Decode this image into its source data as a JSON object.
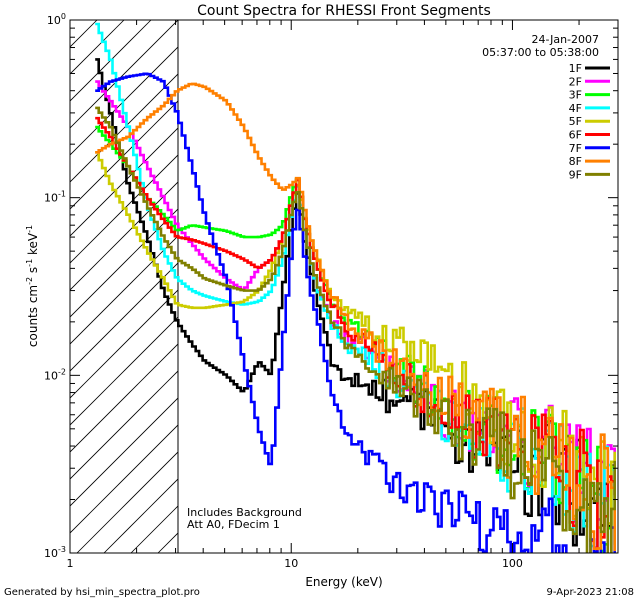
{
  "chart_data": {
    "type": "line",
    "title": "Count Spectra for RHESSI Front Segments",
    "xlabel": "Energy (keV)",
    "ylabel_parts": {
      "base": "counts cm",
      "exp1": "-2",
      "mid": " s",
      "exp2": "-1",
      "end": " keV",
      "exp3": "-1"
    },
    "xscale": "log",
    "yscale": "log",
    "xlim": [
      1.0,
      300
    ],
    "ylim": [
      0.001,
      1.0
    ],
    "x_ticks": [
      {
        "value": 1,
        "label": "1"
      },
      {
        "value": 10,
        "label": "10"
      },
      {
        "value": 100,
        "label": "100"
      }
    ],
    "y_ticks": [
      {
        "value": 1.0,
        "base": "10",
        "exp": "0"
      },
      {
        "value": 0.1,
        "base": "10",
        "exp": "-1"
      },
      {
        "value": 0.01,
        "base": "10",
        "exp": "-2"
      },
      {
        "value": 0.001,
        "base": "10",
        "exp": "-3"
      }
    ],
    "legend": {
      "position": "top-right",
      "date": "24-Jan-2007",
      "time_range": "05:37:00 to 05:38:00"
    },
    "hatched_region": {
      "from_keV": 1.0,
      "to_keV": 3.0
    },
    "annotations": [
      "Includes Background",
      "Att A0, FDecim 1"
    ],
    "series": [
      {
        "name": "1F",
        "color": "#000000",
        "x": [
          1.3,
          1.5,
          1.8,
          2.2,
          2.6,
          3.0,
          3.5,
          4.0,
          5.0,
          6.0,
          7.0,
          8.0,
          9.0,
          10.0,
          10.6,
          11.2,
          12.0,
          13.0,
          14.0,
          15.0,
          17.0,
          20.0,
          25.0,
          30.0,
          40.0,
          50.0,
          70.0,
          100.0,
          150.0,
          200.0,
          250.0,
          290.0
        ],
        "y": [
          0.6,
          0.3,
          0.12,
          0.06,
          0.03,
          0.02,
          0.015,
          0.012,
          0.01,
          0.008,
          0.012,
          0.01,
          0.03,
          0.08,
          0.11,
          0.06,
          0.04,
          0.025,
          0.018,
          0.012,
          0.01,
          0.009,
          0.008,
          0.007,
          0.006,
          0.005,
          0.004,
          0.003,
          0.0028,
          0.0022,
          0.0018,
          0.0013
        ]
      },
      {
        "name": "2F",
        "color": "#ff00ff",
        "x": [
          1.3,
          1.5,
          1.8,
          2.2,
          2.6,
          3.0,
          3.5,
          4.0,
          5.0,
          6.0,
          7.0,
          8.0,
          9.0,
          10.0,
          10.6,
          11.2,
          12.0,
          13.0,
          14.0,
          15.0,
          17.0,
          20.0,
          25.0,
          30.0,
          40.0,
          50.0,
          70.0,
          100.0,
          150.0,
          200.0,
          250.0,
          290.0
        ],
        "y": [
          0.45,
          0.35,
          0.25,
          0.15,
          0.1,
          0.07,
          0.055,
          0.045,
          0.035,
          0.03,
          0.04,
          0.045,
          0.06,
          0.1,
          0.12,
          0.07,
          0.045,
          0.03,
          0.025,
          0.02,
          0.017,
          0.015,
          0.012,
          0.01,
          0.008,
          0.006,
          0.005,
          0.0045,
          0.0035,
          0.003,
          0.0022,
          0.0018
        ]
      },
      {
        "name": "3F",
        "color": "#00ff00",
        "x": [
          1.3,
          1.5,
          1.8,
          2.2,
          2.6,
          3.0,
          3.5,
          4.0,
          5.0,
          6.0,
          7.0,
          8.0,
          9.0,
          10.0,
          10.6,
          11.2,
          12.0,
          13.0,
          14.0,
          15.0,
          17.0,
          20.0,
          25.0,
          30.0,
          40.0,
          50.0,
          70.0,
          100.0,
          150.0,
          200.0,
          250.0,
          290.0
        ],
        "y": [
          0.25,
          0.2,
          0.15,
          0.1,
          0.08,
          0.065,
          0.07,
          0.068,
          0.065,
          0.06,
          0.06,
          0.062,
          0.07,
          0.11,
          0.13,
          0.08,
          0.055,
          0.04,
          0.032,
          0.026,
          0.022,
          0.018,
          0.014,
          0.011,
          0.0085,
          0.0065,
          0.005,
          0.004,
          0.0032,
          0.0025,
          0.002,
          0.0015
        ]
      },
      {
        "name": "4F",
        "color": "#00ffff",
        "x": [
          1.3,
          1.5,
          1.8,
          2.2,
          2.6,
          3.0,
          3.5,
          4.0,
          5.0,
          6.0,
          7.0,
          8.0,
          9.0,
          10.0,
          10.6,
          11.2,
          12.0,
          13.0,
          14.0,
          15.0,
          17.0,
          20.0,
          25.0,
          30.0,
          40.0,
          50.0,
          70.0,
          100.0,
          150.0,
          200.0,
          250.0,
          290.0
        ],
        "y": [
          0.95,
          0.6,
          0.25,
          0.09,
          0.05,
          0.035,
          0.03,
          0.028,
          0.026,
          0.025,
          0.026,
          0.03,
          0.045,
          0.09,
          0.12,
          0.07,
          0.045,
          0.03,
          0.024,
          0.019,
          0.016,
          0.013,
          0.011,
          0.009,
          0.007,
          0.0055,
          0.0045,
          0.0038,
          0.003,
          0.0025,
          0.002,
          0.0016
        ]
      },
      {
        "name": "5F",
        "color": "#cccc00",
        "x": [
          1.3,
          1.5,
          1.8,
          2.2,
          2.6,
          3.0,
          3.5,
          4.0,
          5.0,
          6.0,
          7.0,
          8.0,
          9.0,
          10.0,
          10.6,
          11.2,
          12.0,
          13.0,
          14.0,
          15.0,
          17.0,
          20.0,
          25.0,
          30.0,
          40.0,
          50.0,
          70.0,
          100.0,
          150.0,
          200.0,
          250.0,
          290.0
        ],
        "y": [
          0.18,
          0.12,
          0.08,
          0.05,
          0.035,
          0.025,
          0.024,
          0.024,
          0.025,
          0.026,
          0.03,
          0.04,
          0.06,
          0.1,
          0.12,
          0.08,
          0.06,
          0.045,
          0.035,
          0.028,
          0.024,
          0.02,
          0.017,
          0.015,
          0.012,
          0.009,
          0.007,
          0.005,
          0.0037,
          0.003,
          0.0024,
          0.0019
        ]
      },
      {
        "name": "6F",
        "color": "#ff0000",
        "x": [
          1.3,
          1.5,
          1.8,
          2.2,
          2.6,
          3.0,
          3.5,
          4.0,
          5.0,
          6.0,
          7.0,
          8.0,
          9.0,
          10.0,
          10.6,
          11.2,
          12.0,
          13.0,
          14.0,
          15.0,
          17.0,
          20.0,
          25.0,
          30.0,
          40.0,
          50.0,
          70.0,
          100.0,
          150.0,
          200.0,
          250.0,
          290.0
        ],
        "y": [
          0.28,
          0.22,
          0.15,
          0.1,
          0.075,
          0.06,
          0.058,
          0.055,
          0.05,
          0.045,
          0.04,
          0.045,
          0.06,
          0.1,
          0.13,
          0.08,
          0.055,
          0.04,
          0.03,
          0.025,
          0.02,
          0.016,
          0.012,
          0.01,
          0.008,
          0.0065,
          0.005,
          0.004,
          0.0032,
          0.0026,
          0.002,
          0.0016
        ]
      },
      {
        "name": "7F",
        "color": "#0000ff",
        "x": [
          1.3,
          1.5,
          1.8,
          2.2,
          2.6,
          3.0,
          3.5,
          4.0,
          5.0,
          6.0,
          7.0,
          8.0,
          9.0,
          10.0,
          10.6,
          11.2,
          12.0,
          13.0,
          14.0,
          15.0,
          17.0,
          20.0,
          25.0,
          30.0,
          40.0,
          50.0,
          70.0,
          100.0,
          150.0,
          200.0,
          250.0,
          290.0
        ],
        "y": [
          0.4,
          0.45,
          0.48,
          0.5,
          0.45,
          0.3,
          0.15,
          0.08,
          0.035,
          0.012,
          0.005,
          0.003,
          0.015,
          0.06,
          0.09,
          0.05,
          0.03,
          0.02,
          0.012,
          0.008,
          0.005,
          0.004,
          0.003,
          0.0025,
          0.002,
          0.0018,
          0.0016,
          0.0015,
          0.0012,
          0.001,
          0.001,
          0.001
        ]
      },
      {
        "name": "8F",
        "color": "#ff8000",
        "x": [
          1.3,
          1.5,
          1.8,
          2.2,
          2.6,
          3.0,
          3.5,
          4.0,
          5.0,
          6.0,
          7.0,
          8.0,
          9.0,
          10.0,
          10.6,
          11.2,
          12.0,
          13.0,
          14.0,
          15.0,
          17.0,
          20.0,
          25.0,
          30.0,
          40.0,
          50.0,
          70.0,
          100.0,
          150.0,
          200.0,
          250.0,
          290.0
        ],
        "y": [
          0.18,
          0.2,
          0.22,
          0.28,
          0.33,
          0.4,
          0.44,
          0.42,
          0.35,
          0.25,
          0.17,
          0.13,
          0.11,
          0.12,
          0.13,
          0.09,
          0.06,
          0.045,
          0.035,
          0.028,
          0.022,
          0.017,
          0.013,
          0.011,
          0.0085,
          0.007,
          0.0055,
          0.0045,
          0.0035,
          0.0027,
          0.0022,
          0.0017
        ]
      },
      {
        "name": "9F",
        "color": "#808000",
        "x": [
          1.3,
          1.5,
          1.8,
          2.2,
          2.6,
          3.0,
          3.5,
          4.0,
          5.0,
          6.0,
          7.0,
          8.0,
          9.0,
          10.0,
          10.6,
          11.2,
          12.0,
          13.0,
          14.0,
          15.0,
          17.0,
          20.0,
          25.0,
          30.0,
          40.0,
          50.0,
          70.0,
          100.0,
          150.0,
          200.0,
          250.0,
          290.0
        ],
        "y": [
          0.32,
          0.25,
          0.15,
          0.09,
          0.06,
          0.045,
          0.04,
          0.035,
          0.032,
          0.03,
          0.03,
          0.035,
          0.05,
          0.09,
          0.11,
          0.07,
          0.045,
          0.032,
          0.025,
          0.02,
          0.016,
          0.013,
          0.01,
          0.0085,
          0.007,
          0.0055,
          0.0045,
          0.0035,
          0.0028,
          0.0022,
          0.0018,
          0.0014
        ]
      }
    ]
  },
  "footer": {
    "generated_by": "Generated by hsi_min_spectra_plot.pro",
    "timestamp": "9-Apr-2023 21:08"
  }
}
